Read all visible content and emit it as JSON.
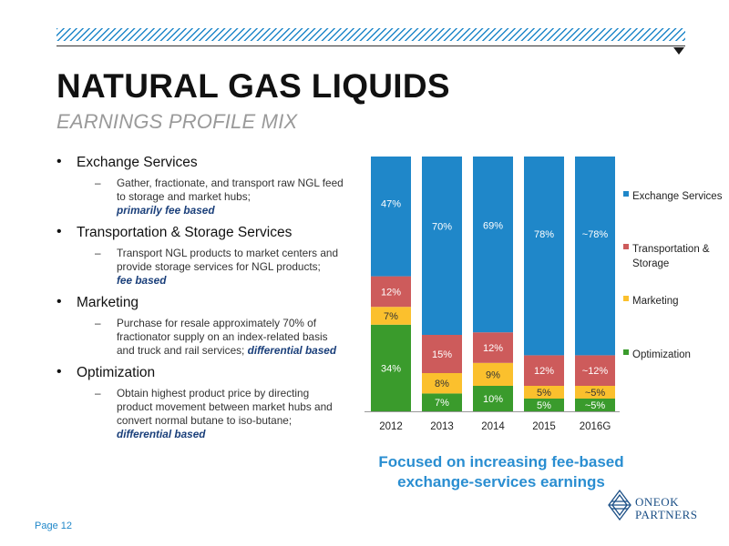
{
  "header": {
    "title": "NATURAL GAS LIQUIDS",
    "subtitle": "EARNINGS PROFILE MIX"
  },
  "bullets": [
    {
      "heading": "Exchange Services",
      "text": "Gather, fractionate, and transport raw NGL feed to storage and market hubs;",
      "emphasis": "primarily fee based"
    },
    {
      "heading": "Transportation & Storage Services",
      "text": "Transport NGL products to market centers and provide storage services for NGL products;",
      "emphasis": "fee based"
    },
    {
      "heading": "Marketing",
      "text": "Purchase for resale approximately 70% of fractionator supply on an index-related basis and truck and rail services;",
      "emphasis": "differential based"
    },
    {
      "heading": "Optimization",
      "text": "Obtain highest product price by directing product movement between market hubs and convert normal butane to iso-butane;",
      "emphasis": "differential based"
    }
  ],
  "chart_data": {
    "type": "bar",
    "stacked": true,
    "percent_stacked": true,
    "categories": [
      "2012",
      "2013",
      "2014",
      "2015",
      "2016G"
    ],
    "series": [
      {
        "name": "Optimization",
        "color": "#3a9b2c",
        "values": [
          34,
          7,
          10,
          5,
          5
        ],
        "labels": [
          "34%",
          "7%",
          "10%",
          "5%",
          "~5%"
        ]
      },
      {
        "name": "Marketing",
        "color": "#fbc02d",
        "values": [
          7,
          8,
          9,
          5,
          5
        ],
        "labels": [
          "7%",
          "8%",
          "9%",
          "5%",
          "~5%"
        ]
      },
      {
        "name": "Transportation & Storage",
        "color": "#cd5b5b",
        "values": [
          12,
          15,
          12,
          12,
          12
        ],
        "labels": [
          "12%",
          "15%",
          "12%",
          "12%",
          "~12%"
        ]
      },
      {
        "name": "Exchange Services",
        "color": "#1f87c9",
        "values": [
          47,
          70,
          69,
          78,
          78
        ],
        "labels": [
          "47%",
          "70%",
          "69%",
          "78%",
          "~78%"
        ]
      }
    ],
    "legend_position": "right",
    "legend_order": [
      "Exchange Services",
      "Transportation & Storage",
      "Marketing",
      "Optimization"
    ],
    "ylim": [
      0,
      100
    ]
  },
  "callout": "Focused on increasing fee-based exchange-services earnings",
  "logo": {
    "line1": "ONEOK",
    "line2": "PARTNERS"
  },
  "footer": {
    "page": "Page 12"
  }
}
